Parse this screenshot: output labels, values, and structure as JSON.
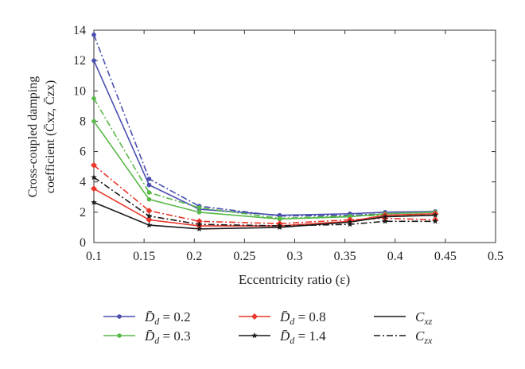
{
  "chart_data": {
    "type": "line",
    "xlabel": "Eccentricity ratio (ε)",
    "ylabel_line1": "Cross-coupled damping",
    "ylabel_line2": "coefficient (C̄xz, C̄zx)",
    "xlim": [
      0.1,
      0.5
    ],
    "ylim": [
      0,
      14
    ],
    "x_ticks": [
      "0.1",
      "0.15",
      "0.2",
      "0.25",
      "0.3",
      "0.35",
      "0.4",
      "0.45",
      "0.5"
    ],
    "y_ticks": [
      "0",
      "2",
      "4",
      "6",
      "8",
      "10",
      "12",
      "14"
    ],
    "grid": false,
    "legend_placement": "bottom",
    "x": [
      0.1,
      0.155,
      0.205,
      0.285,
      0.355,
      0.39,
      0.44
    ],
    "series": [
      {
        "name": "D̄d = 0.2, Cxz",
        "color": "#4a4fb0",
        "style": "solid",
        "marker": "dot",
        "values": [
          12.0,
          3.8,
          2.2,
          1.8,
          1.9,
          2.0,
          2.05
        ]
      },
      {
        "name": "D̄d = 0.2, Czx",
        "color": "#4a4fb0",
        "style": "dashdot",
        "marker": "dot",
        "values": [
          13.7,
          4.2,
          2.4,
          1.75,
          1.8,
          1.9,
          2.0
        ]
      },
      {
        "name": "D̄d = 0.3, Cxz",
        "color": "#58b848",
        "style": "solid",
        "marker": "dot",
        "values": [
          8.0,
          2.85,
          2.0,
          1.55,
          1.7,
          1.9,
          2.0
        ]
      },
      {
        "name": "D̄d = 0.3, Czx",
        "color": "#58b848",
        "style": "dashdot",
        "marker": "dot",
        "values": [
          9.5,
          3.3,
          2.3,
          1.6,
          1.75,
          1.8,
          1.85
        ]
      },
      {
        "name": "D̄d = 0.8, Cxz",
        "color": "#e8362a",
        "style": "solid",
        "marker": "diamond",
        "values": [
          3.55,
          1.5,
          1.1,
          1.1,
          1.4,
          1.8,
          1.9
        ]
      },
      {
        "name": "D̄d = 0.8, Czx",
        "color": "#e8362a",
        "style": "dashdot",
        "marker": "diamond",
        "values": [
          5.1,
          2.1,
          1.4,
          1.25,
          1.5,
          1.6,
          1.5
        ]
      },
      {
        "name": "D̄d = 1.4, Cxz",
        "color": "#1a1a1a",
        "style": "solid",
        "marker": "star",
        "values": [
          2.65,
          1.15,
          0.9,
          1.0,
          1.35,
          1.7,
          1.8
        ]
      },
      {
        "name": "D̄d = 1.4, Czx",
        "color": "#1a1a1a",
        "style": "dashdot",
        "marker": "star",
        "values": [
          4.3,
          1.75,
          1.2,
          1.1,
          1.2,
          1.4,
          1.4
        ]
      }
    ]
  },
  "legend": {
    "items": [
      {
        "symbol": "D̄",
        "sub": "d",
        "eq": " = 0.2",
        "color": "#4a4fb0",
        "marker": "dot"
      },
      {
        "symbol": "D̄",
        "sub": "d",
        "eq": " = 0.3",
        "color": "#58b848",
        "marker": "dot"
      },
      {
        "symbol": "D̄",
        "sub": "d",
        "eq": " = 0.8",
        "color": "#e8362a",
        "marker": "diamond"
      },
      {
        "symbol": "D̄",
        "sub": "d",
        "eq": " = 1.4",
        "color": "#1a1a1a",
        "marker": "star"
      },
      {
        "symbol": "C",
        "sub": "xz",
        "style": "solid"
      },
      {
        "symbol": "C",
        "sub": "zx",
        "style": "dashdot"
      }
    ]
  }
}
